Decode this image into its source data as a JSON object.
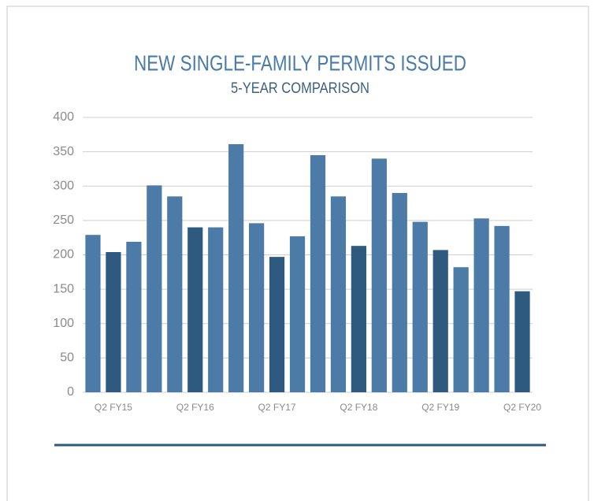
{
  "chart_data": {
    "type": "bar",
    "title": "NEW SINGLE-FAMILY PERMITS ISSUED",
    "subtitle": "5-YEAR COMPARISON",
    "categories": [
      null,
      "Q2 FY15",
      null,
      null,
      null,
      "Q2 FY16",
      null,
      null,
      null,
      "Q2 FY17",
      null,
      null,
      null,
      "Q2 FY18",
      null,
      null,
      null,
      "Q2 FY19",
      null,
      null,
      null,
      "Q2 FY20"
    ],
    "values": [
      229,
      204,
      219,
      301,
      285,
      240,
      240,
      361,
      246,
      197,
      227,
      345,
      285,
      213,
      340,
      290,
      248,
      207,
      182,
      253,
      242,
      147
    ],
    "colors": [
      "#4d7ba7",
      "#2f5a80",
      "#4d7ba7",
      "#4d7ba7",
      "#4d7ba7",
      "#2f5a80",
      "#4d7ba7",
      "#4d7ba7",
      "#4d7ba7",
      "#2f5a80",
      "#4d7ba7",
      "#4d7ba7",
      "#4d7ba7",
      "#2f5a80",
      "#4d7ba7",
      "#4d7ba7",
      "#4d7ba7",
      "#2f5a80",
      "#4d7ba7",
      "#4d7ba7",
      "#4d7ba7",
      "#2f5a80"
    ],
    "ylim": [
      0,
      400
    ],
    "yticks": [
      0,
      50,
      100,
      150,
      200,
      250,
      300,
      350,
      400
    ],
    "grid": true
  }
}
